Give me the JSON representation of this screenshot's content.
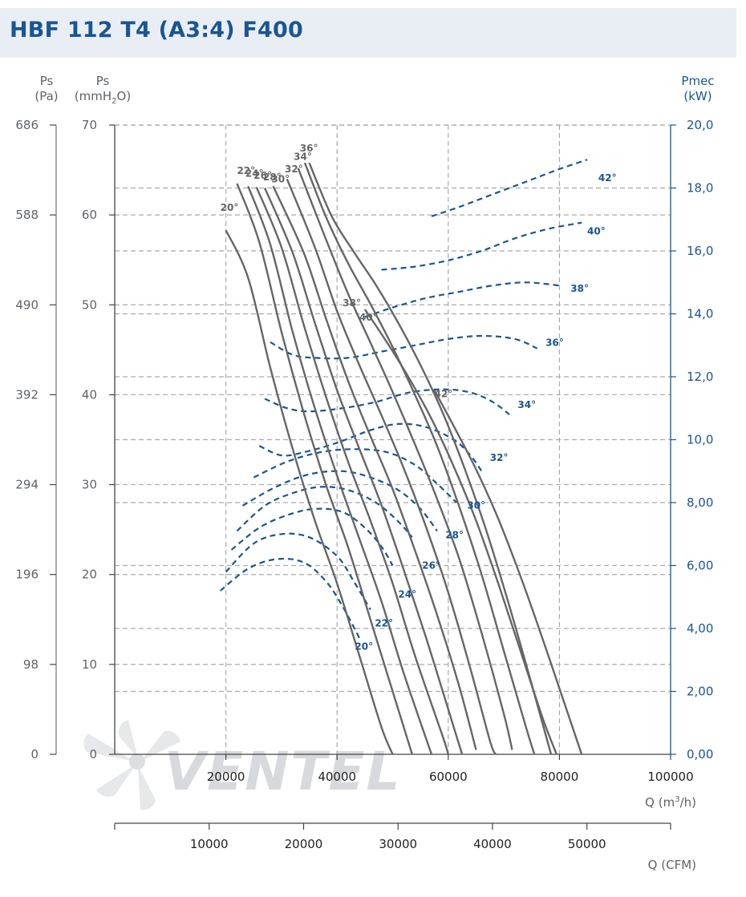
{
  "title": "HBF 112 T4 (A3:4) F400",
  "watermark": "VENTEL",
  "axes": {
    "pa_label_line1": "Ps",
    "pa_label_line2": "(Pa)",
    "mm_label_line1": "Ps",
    "mm_label_line2_pre": "(mmH",
    "mm_label_sub": "2",
    "mm_label_post": "O)",
    "power_label_line1": "Pmec",
    "power_label_line2": "(kW)",
    "q_m3h_pre": "Q (m",
    "q_m3h_sup": "3",
    "q_m3h_post": "/h)",
    "q_cfm_label": "Q (CFM)"
  },
  "colors": {
    "pressure_curve": "#666666",
    "power_curve": "#1a5593",
    "title": "#1a5593",
    "title_bg": "#e9eef4",
    "grid": "#aaaaaa"
  },
  "chart_data": {
    "type": "line",
    "title": "HBF 112 T4 (A3:4) F400",
    "xlabel": "Q (m³/h)",
    "xlabel_secondary": "Q (CFM)",
    "ylabel": "Ps (mmH2O)",
    "ylabel_secondary": "Ps (Pa)",
    "ylabel_right": "Pmec (kW)",
    "xlim": [
      0,
      100000
    ],
    "ylim": [
      0,
      70
    ],
    "ylim_right": [
      0,
      20
    ],
    "grid": true,
    "x_ticks": [
      20000,
      40000,
      60000,
      80000,
      100000
    ],
    "x_tick_labels": [
      "20000",
      "40000",
      "60000",
      "80000",
      "100000"
    ],
    "cfm_ticks": [
      10000,
      20000,
      30000,
      40000,
      50000
    ],
    "cfm_tick_labels": [
      "10000",
      "20000",
      "30000",
      "40000",
      "50000"
    ],
    "y_ticks": [
      0,
      10,
      20,
      30,
      40,
      50,
      60,
      70
    ],
    "y_tick_labels": [
      "0",
      "10",
      "20",
      "30",
      "40",
      "50",
      "60",
      "70"
    ],
    "pa_tick_labels": [
      "0",
      "98",
      "196",
      "294",
      "392",
      "490",
      "588",
      "686"
    ],
    "right_ticks": [
      0,
      2,
      4,
      6,
      8,
      10,
      12,
      14,
      16,
      18,
      20
    ],
    "right_tick_labels": [
      "0,00",
      "2,00",
      "4,00",
      "6,00",
      "8,00",
      "10,0",
      "12,0",
      "14,0",
      "16,0",
      "18,0",
      "20,0"
    ],
    "pressure_series": [
      {
        "name": "20°",
        "label_at": [
          19000,
          60.8
        ],
        "points": [
          [
            20000,
            58.3
          ],
          [
            24000,
            53
          ],
          [
            28000,
            43
          ],
          [
            32000,
            34
          ],
          [
            36000,
            26
          ],
          [
            40000,
            19
          ],
          [
            44000,
            11
          ],
          [
            48000,
            3
          ],
          [
            50000,
            0
          ]
        ]
      },
      {
        "name": "22°",
        "label_at": [
          22000,
          64.9
        ],
        "points": [
          [
            22000,
            63.5
          ],
          [
            26000,
            57
          ],
          [
            30000,
            47
          ],
          [
            34000,
            38
          ],
          [
            38000,
            30
          ],
          [
            42000,
            23
          ],
          [
            46000,
            15
          ],
          [
            50000,
            7
          ],
          [
            53500,
            0
          ]
        ]
      },
      {
        "name": "24°",
        "label_at": [
          23500,
          64.6
        ],
        "points": [
          [
            24000,
            63.2
          ],
          [
            28000,
            56.7
          ],
          [
            32000,
            47
          ],
          [
            36000,
            38.5
          ],
          [
            40000,
            31
          ],
          [
            44000,
            24
          ],
          [
            48000,
            17
          ],
          [
            52000,
            9
          ],
          [
            57000,
            0
          ]
        ]
      },
      {
        "name": "26°",
        "label_at": [
          25000,
          64.4
        ],
        "points": [
          [
            25500,
            63.1
          ],
          [
            30000,
            56.4
          ],
          [
            34000,
            47.8
          ],
          [
            38000,
            39.8
          ],
          [
            42000,
            32.5
          ],
          [
            46000,
            26
          ],
          [
            50000,
            19
          ],
          [
            54000,
            11
          ],
          [
            59000,
            2
          ],
          [
            60000,
            0
          ]
        ]
      },
      {
        "name": "28°",
        "label_at": [
          26700,
          64.2
        ],
        "points": [
          [
            27000,
            63.0
          ],
          [
            32000,
            55.8
          ],
          [
            36000,
            48
          ],
          [
            40000,
            40.5
          ],
          [
            44000,
            34
          ],
          [
            48000,
            27.7
          ],
          [
            52000,
            20.5
          ],
          [
            56000,
            13
          ],
          [
            60000,
            5
          ],
          [
            62500,
            0
          ]
        ]
      },
      {
        "name": "30°",
        "label_at": [
          28200,
          64.0
        ],
        "points": [
          [
            28500,
            63.2
          ],
          [
            34000,
            55.8
          ],
          [
            38000,
            48.5
          ],
          [
            42000,
            41.5
          ],
          [
            46000,
            35.4
          ],
          [
            50000,
            29.5
          ],
          [
            54000,
            22.7
          ],
          [
            58000,
            15.5
          ],
          [
            62000,
            7.5
          ],
          [
            65000,
            0.5
          ]
        ]
      },
      {
        "name": "32°",
        "label_at": [
          30600,
          65.1
        ],
        "points": [
          [
            31000,
            64.0
          ],
          [
            36000,
            56.4
          ],
          [
            40000,
            49.3
          ],
          [
            44000,
            43.3
          ],
          [
            48000,
            37.7
          ],
          [
            52000,
            31.8
          ],
          [
            56000,
            25.3
          ],
          [
            60000,
            18
          ],
          [
            64000,
            9.5
          ],
          [
            67500,
            1.5
          ],
          [
            68500,
            0
          ]
        ]
      },
      {
        "name": "34°",
        "label_at": [
          32200,
          66.5
        ],
        "points": [
          [
            33000,
            65.2
          ],
          [
            38000,
            57.3
          ],
          [
            42000,
            51.2
          ],
          [
            46000,
            45.8
          ],
          [
            50000,
            40.3
          ],
          [
            54000,
            34.5
          ],
          [
            58000,
            28.4
          ],
          [
            62000,
            21.7
          ],
          [
            66000,
            13.5
          ],
          [
            70000,
            4.5
          ],
          [
            71500,
            0.5
          ]
        ]
      },
      {
        "name": "36°",
        "label_at": [
          33300,
          67.4
        ],
        "points": [
          [
            34200,
            65.8
          ],
          [
            38000,
            59.8
          ],
          [
            42000,
            54.6
          ],
          [
            46000,
            50.1
          ],
          [
            50000,
            45.3
          ],
          [
            54000,
            40
          ],
          [
            58000,
            34.3
          ],
          [
            62000,
            27.5
          ],
          [
            66000,
            20
          ],
          [
            70000,
            11.5
          ],
          [
            74000,
            3
          ],
          [
            75500,
            0
          ]
        ]
      },
      {
        "name": "38°",
        "label_at": [
          41000,
          50.2
        ],
        "points": [
          [
            35000,
            65.8
          ],
          [
            39000,
            59.9
          ],
          [
            43000,
            55.9
          ],
          [
            47000,
            52.2
          ],
          [
            51000,
            48
          ],
          [
            55000,
            43.3
          ],
          [
            59000,
            38
          ],
          [
            63000,
            31.7
          ],
          [
            67000,
            24.6
          ],
          [
            71000,
            16.5
          ],
          [
            75000,
            7.8
          ],
          [
            78500,
            0
          ]
        ]
      },
      {
        "name": "40°",
        "label_at": [
          44000,
          48.6
        ],
        "points": [
          [
            45000,
            49.5
          ],
          [
            49000,
            45.8
          ],
          [
            53000,
            41.8
          ],
          [
            57000,
            37.3
          ],
          [
            61000,
            32
          ],
          [
            65000,
            26
          ],
          [
            69000,
            19
          ],
          [
            73000,
            11.5
          ],
          [
            77000,
            4
          ],
          [
            79500,
            0
          ]
        ]
      },
      {
        "name": "42°",
        "label_at": [
          57500,
          40.1
        ],
        "points": [
          [
            57500,
            40.5
          ],
          [
            61000,
            36.5
          ],
          [
            65000,
            31.7
          ],
          [
            69000,
            26.2
          ],
          [
            73000,
            19.8
          ],
          [
            77000,
            12.8
          ],
          [
            81000,
            5.5
          ],
          [
            84000,
            0
          ]
        ]
      }
    ],
    "power_series": [
      {
        "name": "20°",
        "label_at": [
          43200,
          12.0
        ],
        "points": [
          [
            19000,
            5.2
          ],
          [
            24000,
            5.9
          ],
          [
            29000,
            6.2
          ],
          [
            34000,
            6.1
          ],
          [
            38000,
            5.5
          ],
          [
            41000,
            4.7
          ],
          [
            44000,
            3.7
          ]
        ]
      },
      {
        "name": "22°",
        "label_at": [
          46800,
          14.6
        ],
        "points": [
          [
            20000,
            5.8
          ],
          [
            25000,
            6.7
          ],
          [
            30000,
            7.0
          ],
          [
            35000,
            6.9
          ],
          [
            40000,
            6.3
          ],
          [
            43000,
            5.5
          ],
          [
            46000,
            4.6
          ]
        ]
      },
      {
        "name": "24°",
        "label_at": [
          51000,
          17.8
        ],
        "points": [
          [
            21000,
            6.5
          ],
          [
            26000,
            7.2
          ],
          [
            31000,
            7.6
          ],
          [
            36000,
            7.8
          ],
          [
            41000,
            7.7
          ],
          [
            45000,
            7.2
          ],
          [
            48000,
            6.6
          ],
          [
            50000,
            6.0
          ]
        ]
      },
      {
        "name": "26°",
        "label_at": [
          55300,
          21.0
        ],
        "points": [
          [
            22000,
            7.1
          ],
          [
            27000,
            7.9
          ],
          [
            32000,
            8.3
          ],
          [
            37000,
            8.5
          ],
          [
            42000,
            8.4
          ],
          [
            47000,
            8.0
          ],
          [
            51000,
            7.4
          ],
          [
            53500,
            6.9
          ]
        ]
      },
      {
        "name": "28°",
        "label_at": [
          59500,
          24.4
        ],
        "points": [
          [
            23000,
            7.9
          ],
          [
            29000,
            8.5
          ],
          [
            35000,
            8.9
          ],
          [
            41000,
            9.0
          ],
          [
            46000,
            8.8
          ],
          [
            51000,
            8.4
          ],
          [
            55000,
            7.8
          ],
          [
            58000,
            7.1
          ]
        ]
      },
      {
        "name": "30°",
        "label_at": [
          63400,
          27.7
        ],
        "points": [
          [
            25000,
            8.8
          ],
          [
            31000,
            9.3
          ],
          [
            37000,
            9.6
          ],
          [
            43000,
            9.7
          ],
          [
            49000,
            9.6
          ],
          [
            54000,
            9.2
          ],
          [
            58000,
            8.6
          ],
          [
            61500,
            8.0
          ]
        ]
      },
      {
        "name": "32°",
        "label_at": [
          67500,
          33.0
        ],
        "points": [
          [
            26000,
            9.8
          ],
          [
            30000,
            9.5
          ],
          [
            34000,
            9.6
          ],
          [
            40000,
            9.9
          ],
          [
            46000,
            10.3
          ],
          [
            51000,
            10.5
          ],
          [
            56000,
            10.4
          ],
          [
            61000,
            10.0
          ],
          [
            64000,
            9.5
          ],
          [
            66000,
            9.0
          ]
        ]
      },
      {
        "name": "34°",
        "label_at": [
          72500,
          38.9
        ],
        "points": [
          [
            27000,
            11.3
          ],
          [
            31000,
            11.0
          ],
          [
            35000,
            10.9
          ],
          [
            41000,
            11.0
          ],
          [
            47000,
            11.2
          ],
          [
            53000,
            11.5
          ],
          [
            59000,
            11.6
          ],
          [
            64000,
            11.5
          ],
          [
            68000,
            11.2
          ],
          [
            71000,
            10.8
          ]
        ]
      },
      {
        "name": "36°",
        "label_at": [
          77500,
          45.8
        ],
        "points": [
          [
            28000,
            13.1
          ],
          [
            32000,
            12.7
          ],
          [
            36000,
            12.6
          ],
          [
            42000,
            12.6
          ],
          [
            48000,
            12.8
          ],
          [
            54000,
            13.0
          ],
          [
            60000,
            13.2
          ],
          [
            66000,
            13.3
          ],
          [
            72000,
            13.2
          ],
          [
            76000,
            12.9
          ]
        ]
      },
      {
        "name": "38°",
        "label_at": [
          82000,
          51.8
        ],
        "points": [
          [
            45000,
            13.9
          ],
          [
            50000,
            14.2
          ],
          [
            56000,
            14.5
          ],
          [
            62000,
            14.7
          ],
          [
            68000,
            14.9
          ],
          [
            74000,
            15.0
          ],
          [
            80000,
            14.9
          ]
        ]
      },
      {
        "name": "40°",
        "label_at": [
          85000,
          58.2
        ],
        "points": [
          [
            48000,
            15.4
          ],
          [
            54000,
            15.5
          ],
          [
            60000,
            15.7
          ],
          [
            66000,
            16.0
          ],
          [
            72000,
            16.4
          ],
          [
            78000,
            16.7
          ],
          [
            84000,
            16.9
          ]
        ]
      },
      {
        "name": "42°",
        "label_at": [
          87000,
          64.1
        ],
        "points": [
          [
            57000,
            17.1
          ],
          [
            62000,
            17.4
          ],
          [
            68000,
            17.8
          ],
          [
            74000,
            18.2
          ],
          [
            80000,
            18.6
          ],
          [
            85000,
            18.9
          ]
        ]
      }
    ]
  }
}
